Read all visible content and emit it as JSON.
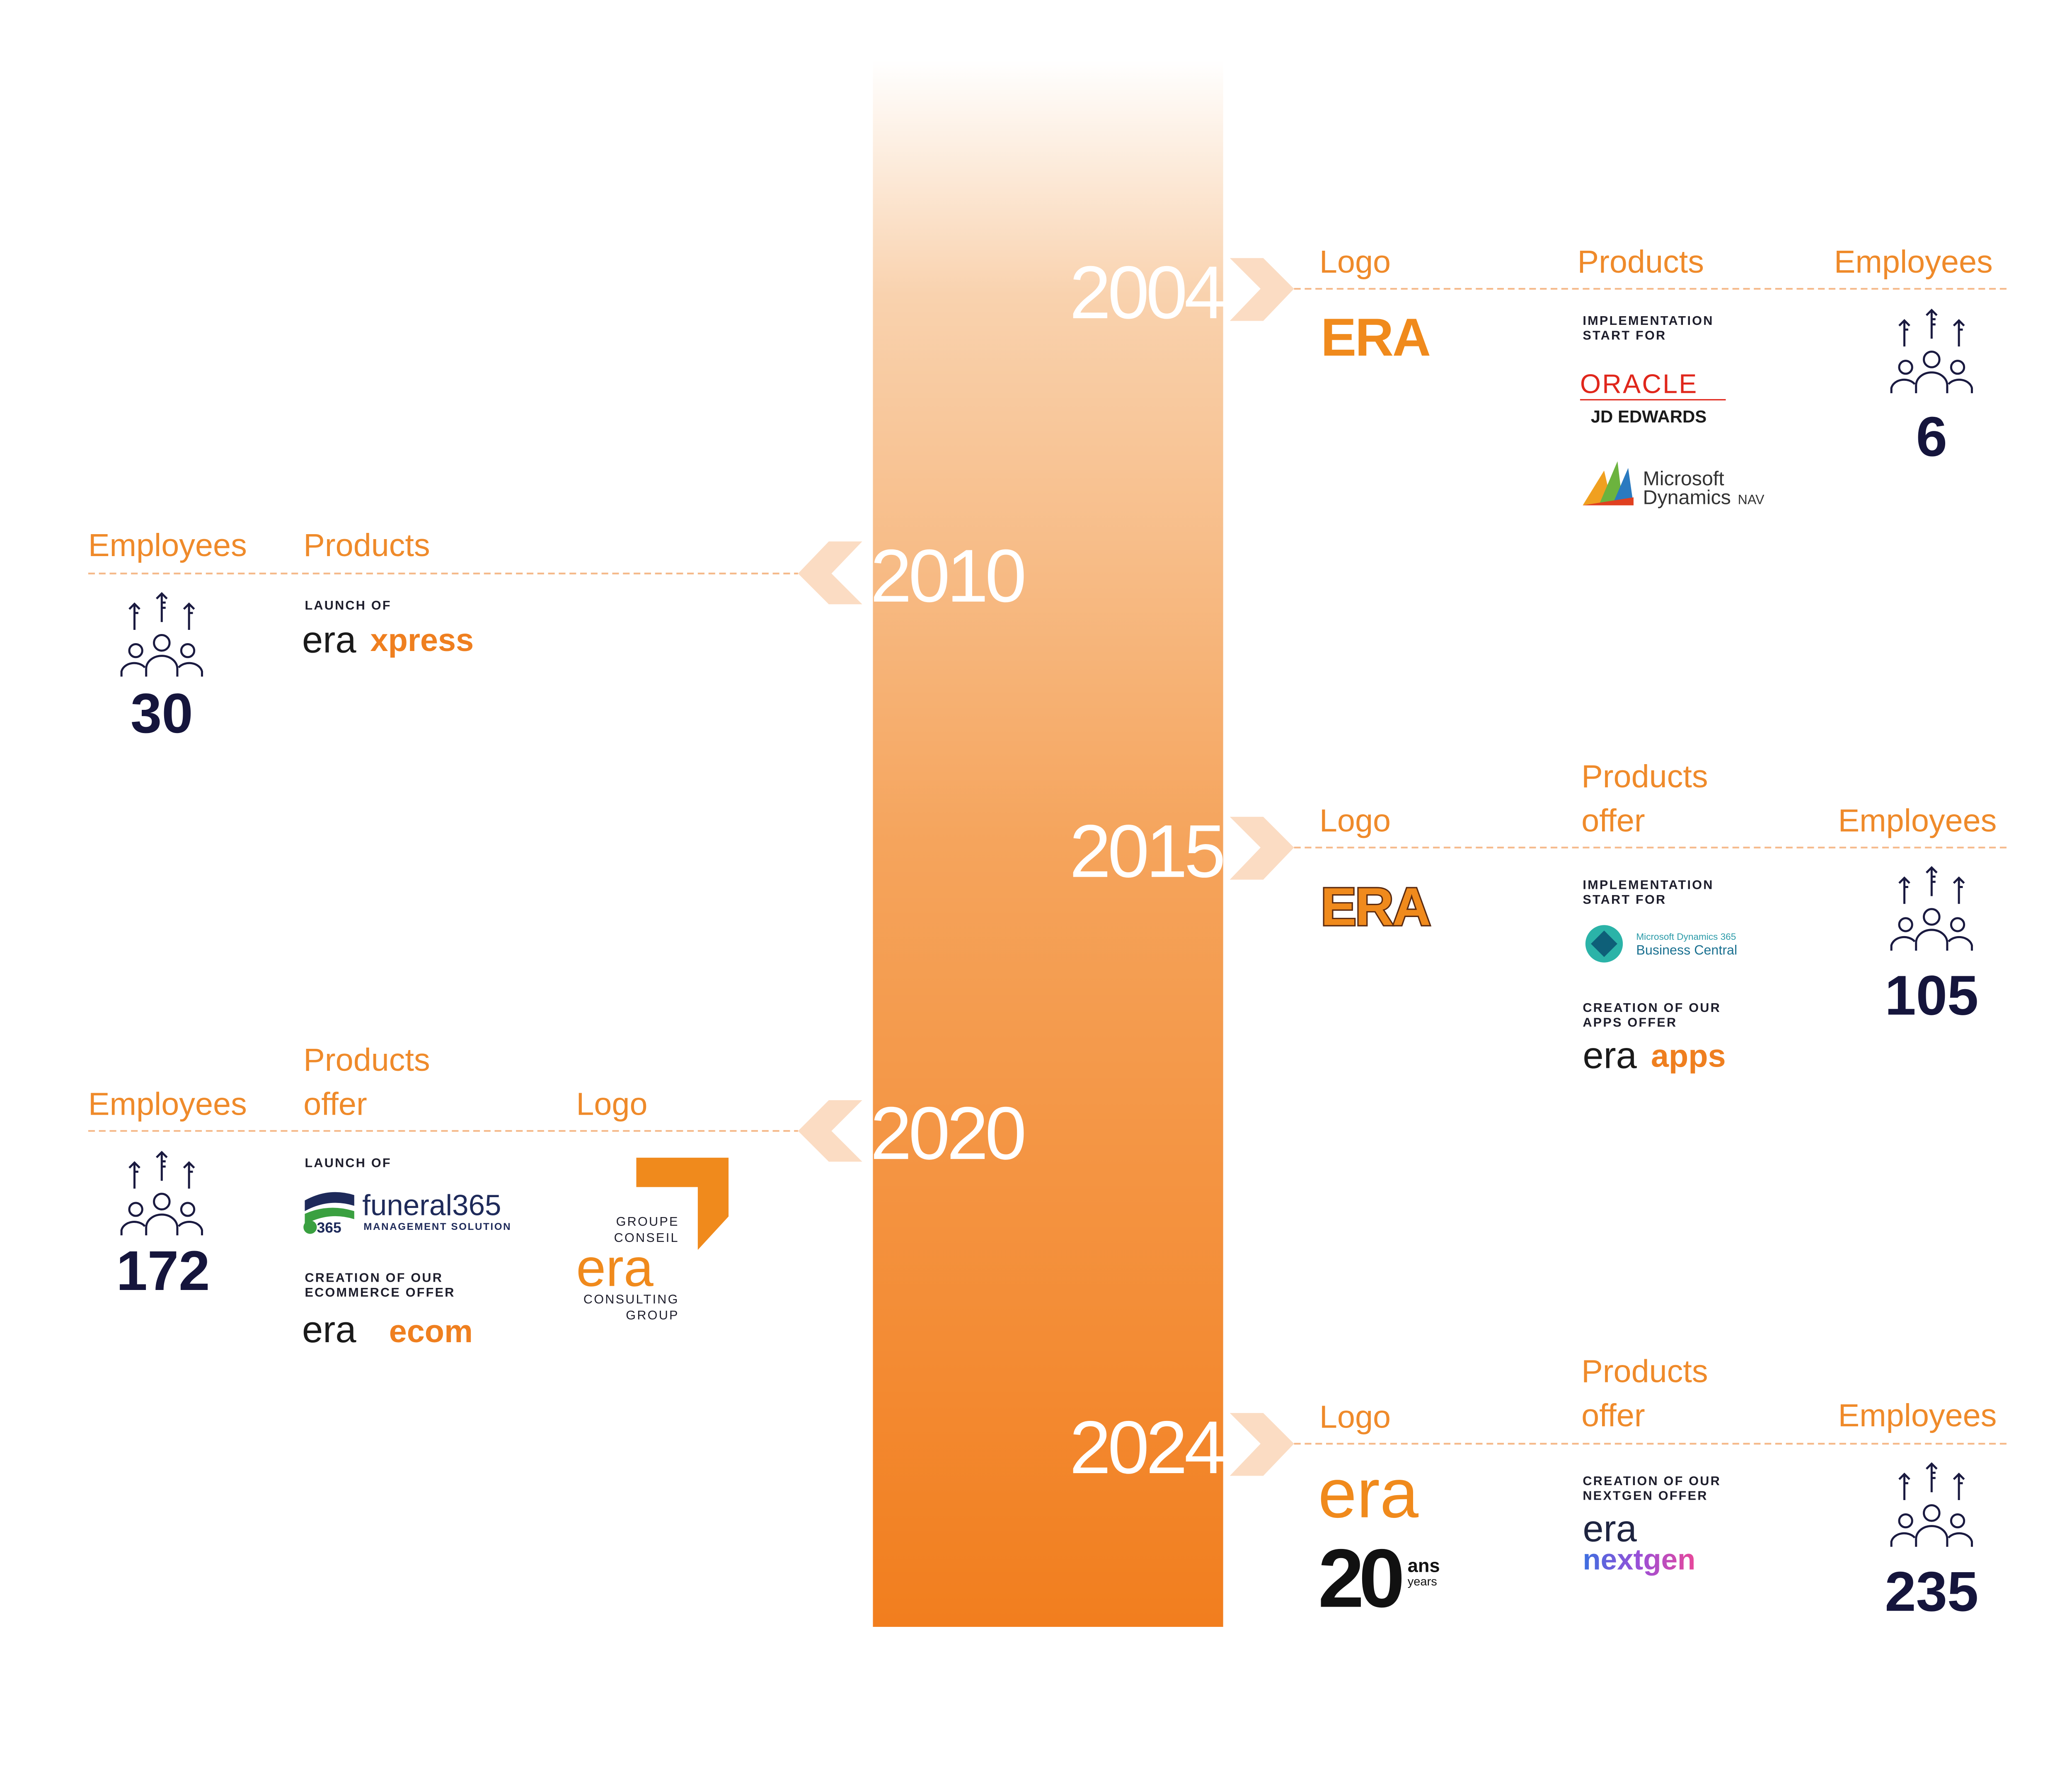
{
  "milestones": [
    {
      "year": "2004",
      "logo": {
        "heading": "Logo",
        "wordmark": "ERA"
      },
      "products": {
        "heading": [
          "Products"
        ],
        "caption": [
          "IMPLEMENTATION",
          "START FOR"
        ],
        "oracle": {
          "name": "ORACLE",
          "product": "JD EDWARDS"
        },
        "microsoft": {
          "lines": [
            "Microsoft",
            "Dynamics"
          ],
          "product": "NAV"
        }
      },
      "employees": {
        "heading": "Employees",
        "count": 6
      }
    },
    {
      "year": "2010",
      "employees": {
        "heading": "Employees",
        "count": 30
      },
      "products": {
        "heading": [
          "Products"
        ],
        "caption": [
          "LAUNCH OF"
        ],
        "brand": "era",
        "product": "xpress"
      }
    },
    {
      "year": "2015",
      "logo": {
        "heading": "Logo",
        "wordmark": "ERA"
      },
      "products": {
        "heading": [
          "Products",
          "offer"
        ],
        "caption": [
          "IMPLEMENTATION",
          "START FOR"
        ],
        "microsoft": {
          "lines": [
            "Microsoft Dynamics 365",
            "Business Central"
          ]
        },
        "caption2": [
          "CREATION OF OUR",
          "APPS OFFER"
        ],
        "brand": "era",
        "product": "apps"
      },
      "employees": {
        "heading": "Employees",
        "count": 105
      }
    },
    {
      "year": "2020",
      "employees": {
        "heading": "Employees",
        "count": 172
      },
      "products": {
        "heading": [
          "Products",
          "offer"
        ],
        "caption": [
          "LAUNCH OF"
        ],
        "funeral": {
          "badge": "365",
          "name": "funeral365",
          "tagline": "MANAGEMENT SOLUTION"
        },
        "caption2": [
          "CREATION OF OUR",
          "ECOMMERCE OFFER"
        ],
        "brand": "era",
        "product": "ecom"
      },
      "logo": {
        "heading": "Logo",
        "top": [
          "GROUPE",
          "CONSEIL"
        ],
        "wordmark": "era",
        "bottom": [
          "CONSULTING",
          "GROUP"
        ]
      }
    },
    {
      "year": "2024",
      "logo": {
        "heading": "Logo",
        "wordmark": "era",
        "anniversary": "20",
        "lines": [
          "ans",
          "years"
        ]
      },
      "products": {
        "heading": [
          "Products",
          "offer"
        ],
        "caption": [
          "CREATION OF OUR",
          "NEXTGEN OFFER"
        ],
        "brand": "era",
        "product": "nextgen"
      },
      "employees": {
        "heading": "Employees",
        "count": 235
      }
    }
  ]
}
